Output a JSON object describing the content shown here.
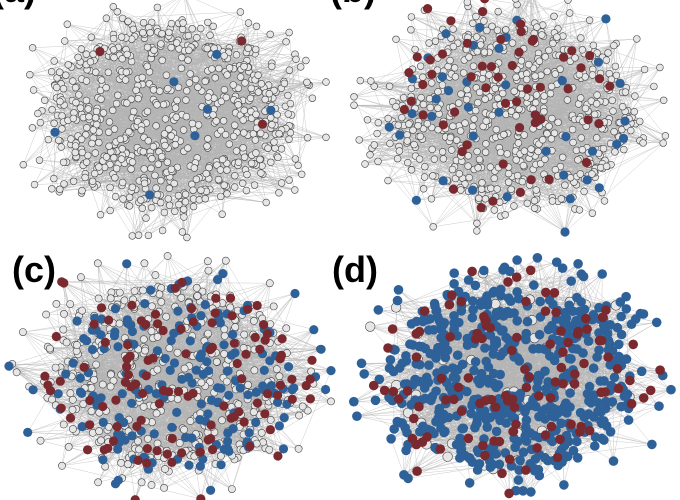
{
  "panels": [
    {
      "label": "(a)",
      "nodes_total": 720,
      "blue": 7,
      "red": 3
    },
    {
      "label": "(b)",
      "nodes_total": 720,
      "blue": 40,
      "red": 55
    },
    {
      "label": "(c)",
      "nodes_total": 720,
      "blue": 180,
      "red": 110
    },
    {
      "label": "(d)",
      "nodes_total": 720,
      "blue": 560,
      "red": 110
    }
  ],
  "colors": {
    "inactive_fill": "#e6e6e6",
    "inactive_stroke": "#444444",
    "blue": "#2f6199",
    "red": "#7a2a2f",
    "edge": "#b4b4b4"
  }
}
